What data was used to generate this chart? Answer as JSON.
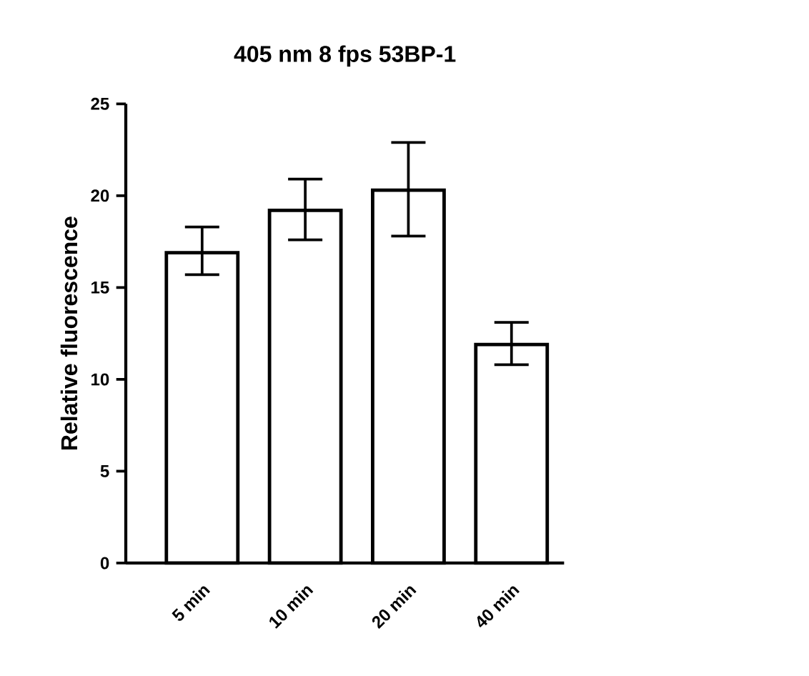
{
  "chart_data": {
    "type": "bar",
    "title": "405 nm 8 fps 53BP-1",
    "ylabel": "Relative fluorescence",
    "categories": [
      "5 min",
      "10 min",
      "20 min",
      "40 min"
    ],
    "values": [
      16.9,
      19.2,
      20.3,
      11.9
    ],
    "errors": [
      [
        15.7,
        18.3
      ],
      [
        17.6,
        20.9
      ],
      [
        17.8,
        22.9
      ],
      [
        10.8,
        13.1
      ]
    ],
    "color": "#ffffff",
    "ylim": [
      0,
      25
    ],
    "yticks": [
      0,
      5,
      10,
      15,
      20,
      25
    ],
    "grid": false
  }
}
